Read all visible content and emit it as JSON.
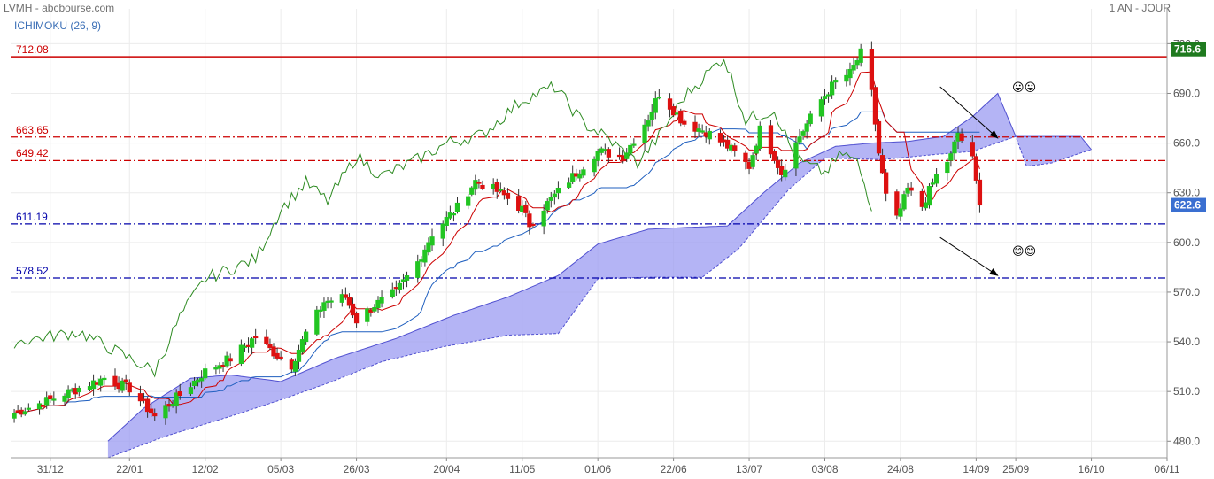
{
  "header": {
    "title": "LVMH - abcbourse.com",
    "period": "1 AN - JOUR",
    "indicator": "ICHIMOKU (26, 9)"
  },
  "chart_data": {
    "type": "candlestick",
    "xlim": [
      "2020-12-20",
      "2021-11-06"
    ],
    "ylim": [
      470,
      725
    ],
    "x_tick_labels": [
      "31/12",
      "22/01",
      "12/02",
      "05/03",
      "26/03",
      "20/04",
      "11/05",
      "01/06",
      "22/06",
      "13/07",
      "03/08",
      "24/08",
      "14/09",
      "25/09",
      "16/10",
      "06/11"
    ],
    "x_tick_dates": [
      "2020-12-31",
      "2021-01-22",
      "2021-02-12",
      "2021-03-05",
      "2021-03-26",
      "2021-04-20",
      "2021-05-11",
      "2021-06-01",
      "2021-06-22",
      "2021-07-13",
      "2021-08-03",
      "2021-08-24",
      "2021-09-14",
      "2021-09-25",
      "2021-10-16",
      "2021-11-06"
    ],
    "y_ticks": [
      480,
      510,
      540,
      570,
      600,
      630,
      660,
      690,
      720
    ],
    "y_tick_labels": [
      "480.0",
      "510.0",
      "540.0",
      "570.0",
      "600.0",
      "630.0",
      "660.0",
      "690.0",
      "720.0"
    ],
    "last_price": "622.6",
    "max_price": "716.6",
    "levels": [
      {
        "label": "712.08",
        "value": 712.08,
        "color": "#cc0000",
        "style": "solid"
      },
      {
        "label": "663.65",
        "value": 663.65,
        "color": "#cc0000",
        "style": "dashdot"
      },
      {
        "label": "649.42",
        "value": 649.42,
        "color": "#cc0000",
        "style": "dashdot"
      },
      {
        "label": "611.19",
        "value": 611.19,
        "color": "#0000aa",
        "style": "dashdot"
      },
      {
        "label": "578.52",
        "value": 578.52,
        "color": "#0000aa",
        "style": "dashdot"
      }
    ],
    "colors": {
      "up": "#22c522",
      "down": "#dd1111",
      "tenkan": "#cc0000",
      "kijun": "#1f5fbf",
      "chikou": "#2e8b22",
      "cloud": "#9b9bf2",
      "cloud_edge": "#5050d0"
    },
    "close_anchors": [
      [
        "2020-12-21",
        497
      ],
      [
        "2020-12-31",
        505
      ],
      [
        "2021-01-08",
        512
      ],
      [
        "2021-01-15",
        518
      ],
      [
        "2021-01-22",
        512
      ],
      [
        "2021-01-29",
        495
      ],
      [
        "2021-02-05",
        508
      ],
      [
        "2021-02-12",
        522
      ],
      [
        "2021-02-19",
        530
      ],
      [
        "2021-02-26",
        543
      ],
      [
        "2021-03-05",
        530
      ],
      [
        "2021-03-08",
        526
      ],
      [
        "2021-03-12",
        545
      ],
      [
        "2021-03-17",
        564
      ],
      [
        "2021-03-23",
        567
      ],
      [
        "2021-03-26",
        553
      ],
      [
        "2021-03-31",
        562
      ],
      [
        "2021-04-06",
        570
      ],
      [
        "2021-04-12",
        588
      ],
      [
        "2021-04-16",
        605
      ],
      [
        "2021-04-20",
        614
      ],
      [
        "2021-04-23",
        621
      ],
      [
        "2021-04-28",
        637
      ],
      [
        "2021-05-05",
        630
      ],
      [
        "2021-05-11",
        620
      ],
      [
        "2021-05-13",
        611
      ],
      [
        "2021-05-19",
        626
      ],
      [
        "2021-05-26",
        642
      ],
      [
        "2021-06-01",
        655
      ],
      [
        "2021-06-08",
        652
      ],
      [
        "2021-06-15",
        675
      ],
      [
        "2021-06-18",
        690
      ],
      [
        "2021-06-22",
        680
      ],
      [
        "2021-06-25",
        672
      ],
      [
        "2021-07-01",
        667
      ],
      [
        "2021-07-07",
        658
      ],
      [
        "2021-07-13",
        646
      ],
      [
        "2021-07-16",
        668
      ],
      [
        "2021-07-20",
        652
      ],
      [
        "2021-07-22",
        642
      ],
      [
        "2021-07-27",
        664
      ],
      [
        "2021-08-02",
        686
      ],
      [
        "2021-08-06",
        697
      ],
      [
        "2021-08-10",
        702
      ],
      [
        "2021-08-13",
        714
      ],
      [
        "2021-08-16",
        690
      ],
      [
        "2021-08-18",
        654
      ],
      [
        "2021-08-20",
        628
      ],
      [
        "2021-08-23",
        614
      ],
      [
        "2021-08-26",
        632
      ],
      [
        "2021-08-30",
        622
      ],
      [
        "2021-09-03",
        640
      ],
      [
        "2021-09-07",
        652
      ],
      [
        "2021-09-09",
        666
      ],
      [
        "2021-09-13",
        650
      ],
      [
        "2021-09-15",
        622.6
      ]
    ],
    "chikou_anchors": [
      [
        "2020-12-21",
        540
      ],
      [
        "2021-01-08",
        546
      ],
      [
        "2021-01-22",
        530
      ],
      [
        "2021-01-29",
        522
      ],
      [
        "2021-02-05",
        555
      ],
      [
        "2021-02-12",
        578
      ],
      [
        "2021-02-26",
        590
      ],
      [
        "2021-03-05",
        620
      ],
      [
        "2021-03-12",
        636
      ],
      [
        "2021-03-18",
        625
      ],
      [
        "2021-03-26",
        652
      ],
      [
        "2021-04-02",
        640
      ],
      [
        "2021-04-12",
        650
      ],
      [
        "2021-04-20",
        660
      ],
      [
        "2021-04-30",
        665
      ],
      [
        "2021-05-11",
        686
      ],
      [
        "2021-05-20",
        694
      ],
      [
        "2021-05-28",
        672
      ],
      [
        "2021-06-03",
        664
      ],
      [
        "2021-06-12",
        648
      ],
      [
        "2021-06-18",
        664
      ],
      [
        "2021-06-25",
        688
      ],
      [
        "2021-07-06",
        712
      ],
      [
        "2021-07-12",
        674
      ],
      [
        "2021-07-20",
        680
      ],
      [
        "2021-07-26",
        650
      ],
      [
        "2021-08-03",
        642
      ],
      [
        "2021-08-08",
        654
      ],
      [
        "2021-08-12",
        648
      ],
      [
        "2021-08-16",
        622
      ]
    ],
    "cloud_upper_anchors": [
      [
        "2021-01-16",
        480
      ],
      [
        "2021-01-26",
        500
      ],
      [
        "2021-02-08",
        518
      ],
      [
        "2021-02-19",
        520
      ],
      [
        "2021-03-05",
        516
      ],
      [
        "2021-03-20",
        530
      ],
      [
        "2021-04-06",
        542
      ],
      [
        "2021-04-22",
        556
      ],
      [
        "2021-05-07",
        567
      ],
      [
        "2021-05-21",
        580
      ],
      [
        "2021-06-01",
        599
      ],
      [
        "2021-06-15",
        608
      ],
      [
        "2021-06-25",
        609
      ],
      [
        "2021-07-07",
        610
      ],
      [
        "2021-07-17",
        630
      ],
      [
        "2021-07-27",
        648
      ],
      [
        "2021-08-06",
        658
      ],
      [
        "2021-08-16",
        660
      ],
      [
        "2021-08-26",
        661
      ],
      [
        "2021-09-05",
        664
      ],
      [
        "2021-09-13",
        676
      ],
      [
        "2021-09-20",
        690
      ],
      [
        "2021-09-25",
        664
      ],
      [
        "2021-10-05",
        664
      ],
      [
        "2021-10-13",
        664
      ],
      [
        "2021-10-16",
        656
      ]
    ],
    "cloud_lower_anchors": [
      [
        "2021-01-16",
        470
      ],
      [
        "2021-02-01",
        483
      ],
      [
        "2021-02-19",
        495
      ],
      [
        "2021-03-05",
        505
      ],
      [
        "2021-03-18",
        515
      ],
      [
        "2021-04-02",
        528
      ],
      [
        "2021-04-19",
        537
      ],
      [
        "2021-05-07",
        544
      ],
      [
        "2021-05-21",
        545
      ],
      [
        "2021-06-01",
        578
      ],
      [
        "2021-06-15",
        579
      ],
      [
        "2021-06-30",
        579
      ],
      [
        "2021-07-10",
        596
      ],
      [
        "2021-07-24",
        632
      ],
      [
        "2021-08-03",
        651
      ],
      [
        "2021-08-19",
        650
      ],
      [
        "2021-09-02",
        653
      ],
      [
        "2021-09-13",
        655
      ],
      [
        "2021-09-25",
        664
      ],
      [
        "2021-09-28",
        646
      ],
      [
        "2021-10-05",
        648
      ],
      [
        "2021-10-13",
        654
      ],
      [
        "2021-10-16",
        656
      ]
    ],
    "annotations": [
      {
        "name": "arrow-upper",
        "from": [
          "2021-09-04",
          694
        ],
        "to": [
          "2021-09-20",
          663
        ]
      },
      {
        "name": "arrow-lower",
        "from": [
          "2021-09-04",
          603
        ],
        "to": [
          "2021-09-20",
          580
        ]
      }
    ],
    "emoji_sets": [
      {
        "glyphs": "😛😛",
        "at": [
          "2021-09-24",
          693
        ]
      },
      {
        "glyphs": "😊😊",
        "at": [
          "2021-09-24",
          594
        ]
      }
    ]
  }
}
